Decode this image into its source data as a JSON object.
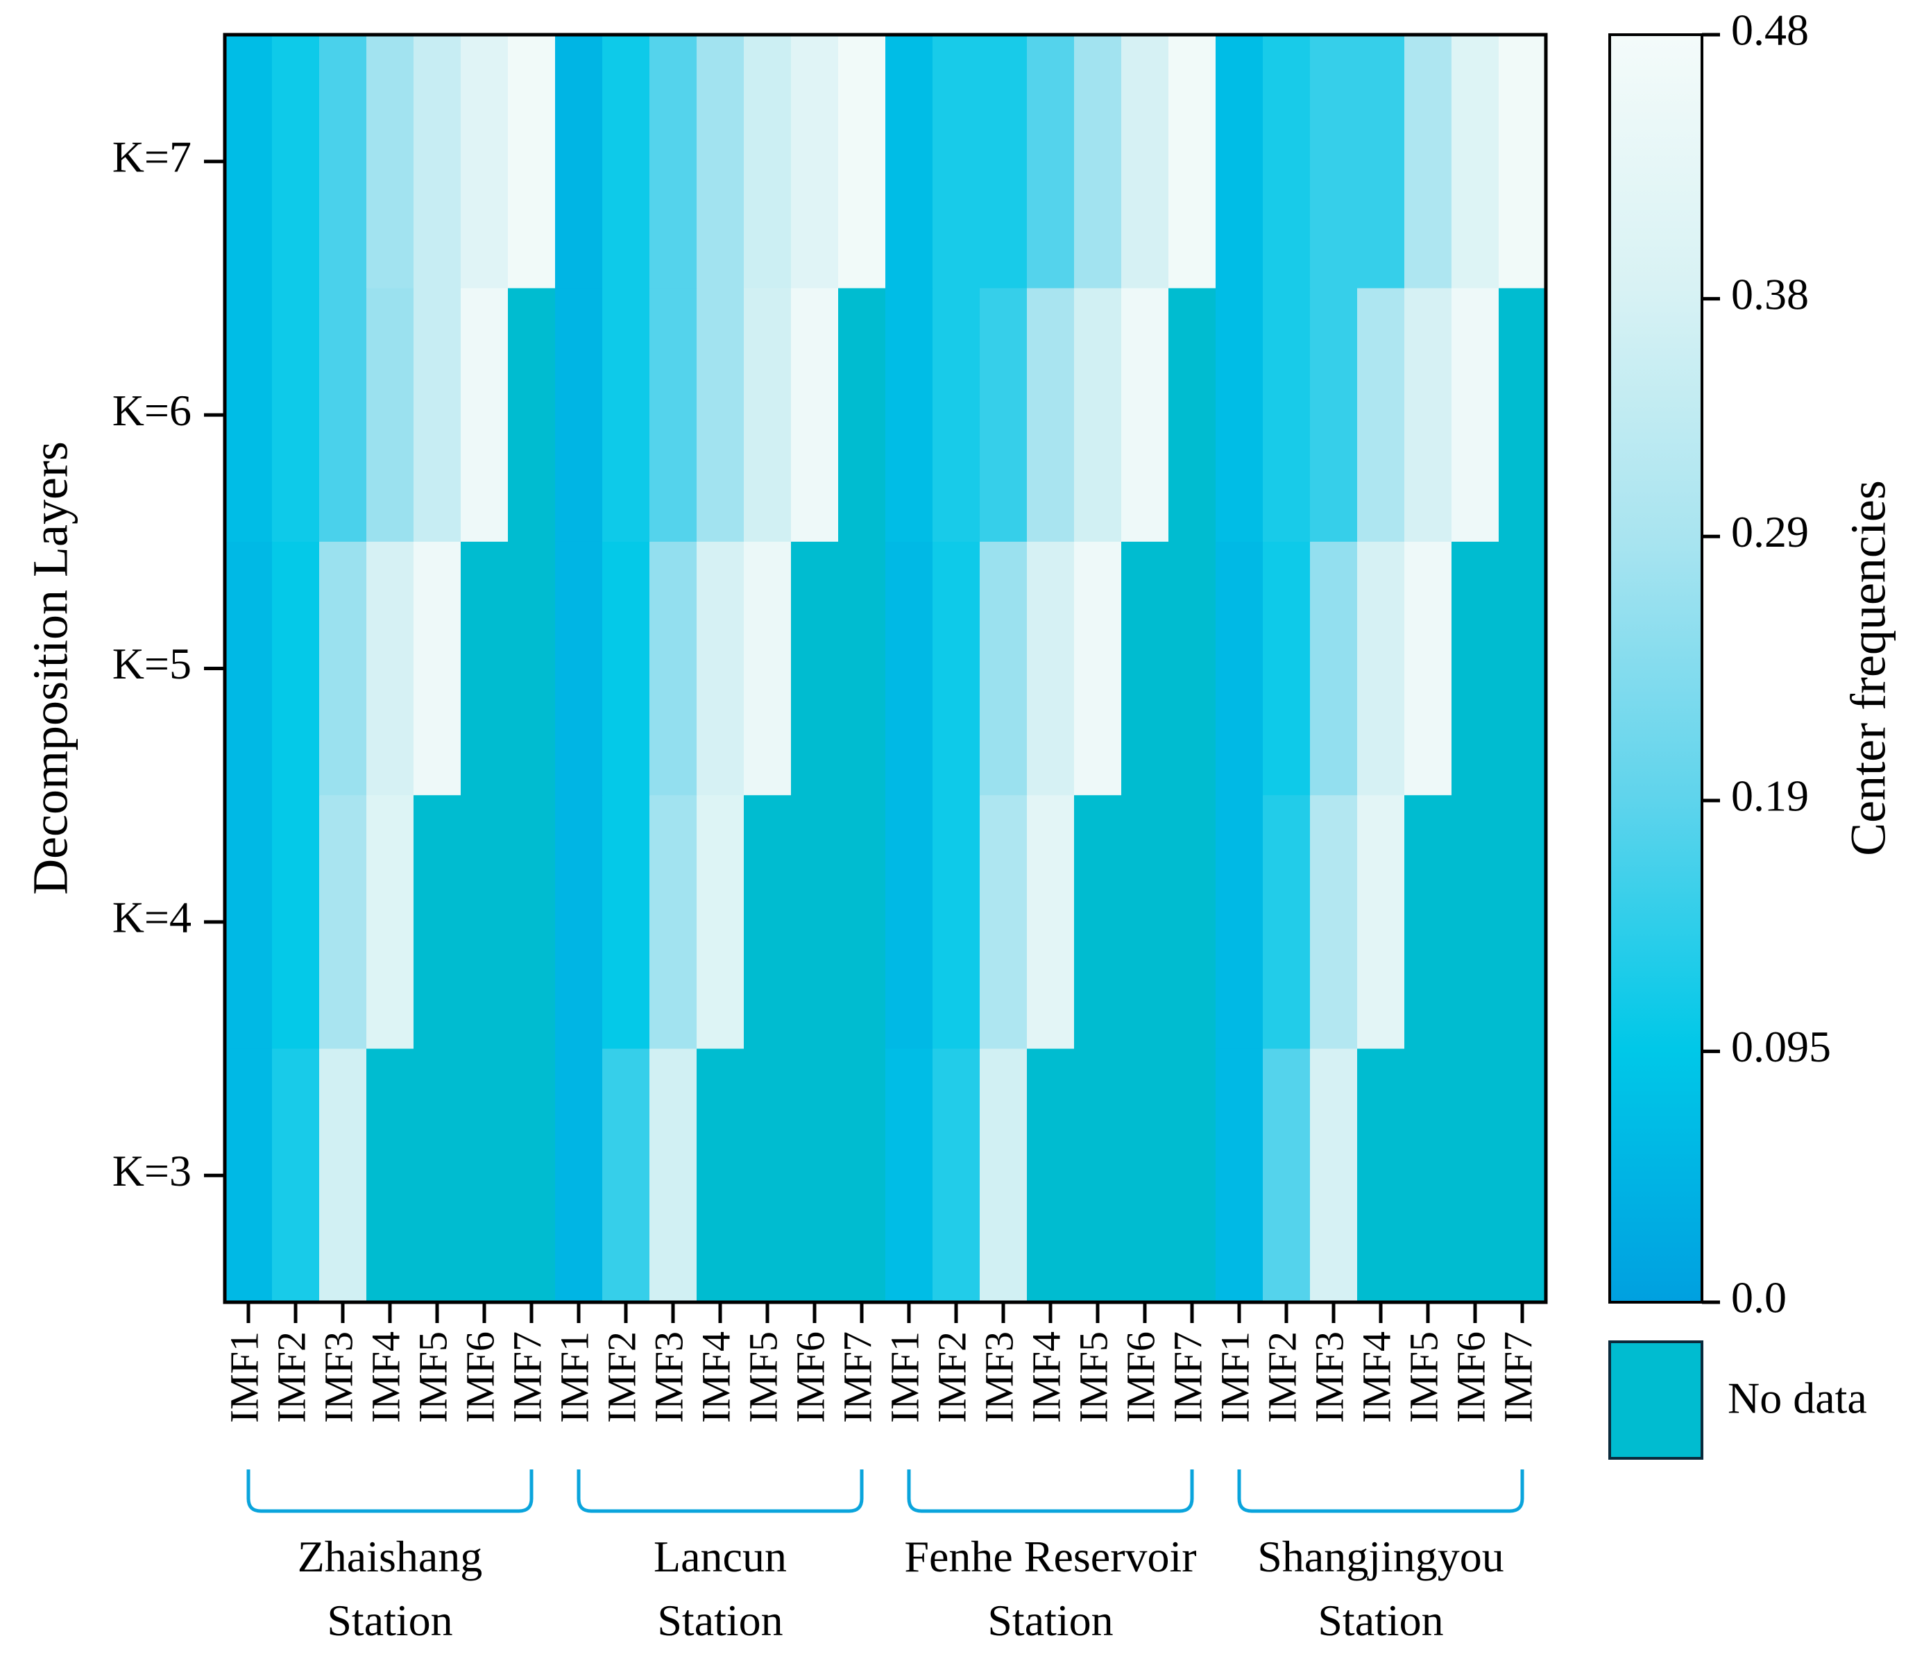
{
  "chart_data": {
    "type": "heatmap",
    "ylabel": "Decomposition Layers",
    "y_categories": [
      "K=3",
      "K=4",
      "K=5",
      "K=6",
      "K=7"
    ],
    "x_categories": [
      "IMF1",
      "IMF2",
      "IMF3",
      "IMF4",
      "IMF5",
      "IMF6",
      "IMF7"
    ],
    "groups": [
      {
        "name_lines": [
          "Zhaishang",
          "Station"
        ],
        "rows": {
          "K=7": [
            0.07,
            0.11,
            0.17,
            0.28,
            0.35,
            0.41,
            0.47
          ],
          "K=6": [
            0.07,
            0.11,
            0.17,
            0.27,
            0.35,
            0.46,
            null
          ],
          "K=5": [
            0.06,
            0.1,
            0.27,
            0.38,
            0.46,
            null,
            null
          ],
          "K=4": [
            0.06,
            0.1,
            0.29,
            0.4,
            null,
            null,
            null
          ],
          "K=3": [
            0.06,
            0.12,
            0.37,
            null,
            null,
            null,
            null
          ]
        }
      },
      {
        "name_lines": [
          "Lancun",
          "Station"
        ],
        "rows": {
          "K=7": [
            0.05,
            0.11,
            0.18,
            0.28,
            0.36,
            0.41,
            0.47
          ],
          "K=6": [
            0.05,
            0.11,
            0.18,
            0.28,
            0.37,
            0.46,
            null
          ],
          "K=5": [
            0.05,
            0.1,
            0.26,
            0.38,
            0.45,
            null,
            null
          ],
          "K=4": [
            0.05,
            0.1,
            0.28,
            0.4,
            null,
            null,
            null
          ],
          "K=3": [
            0.05,
            0.15,
            0.37,
            null,
            null,
            null,
            null
          ]
        }
      },
      {
        "name_lines": [
          "Fenhe Reservoir",
          "Station"
        ],
        "rows": {
          "K=7": [
            0.07,
            0.12,
            0.12,
            0.18,
            0.28,
            0.38,
            0.47
          ],
          "K=6": [
            0.07,
            0.12,
            0.15,
            0.29,
            0.37,
            0.46,
            null
          ],
          "K=5": [
            0.06,
            0.11,
            0.27,
            0.38,
            0.46,
            null,
            null
          ],
          "K=4": [
            0.06,
            0.11,
            0.3,
            0.42,
            null,
            null,
            null
          ],
          "K=3": [
            0.07,
            0.13,
            0.37,
            null,
            null,
            null,
            null
          ]
        }
      },
      {
        "name_lines": [
          "Shangjingyou",
          "Station"
        ],
        "rows": {
          "K=7": [
            0.07,
            0.12,
            0.15,
            0.15,
            0.3,
            0.4,
            0.47
          ],
          "K=6": [
            0.07,
            0.12,
            0.15,
            0.3,
            0.38,
            0.46,
            null
          ],
          "K=5": [
            0.06,
            0.11,
            0.26,
            0.38,
            0.46,
            null,
            null
          ],
          "K=4": [
            0.06,
            0.13,
            0.31,
            0.42,
            null,
            null,
            null
          ],
          "K=3": [
            0.06,
            0.18,
            0.38,
            null,
            null,
            null,
            null
          ]
        }
      }
    ],
    "colorbar": {
      "label": "Center frequencies",
      "ticks": [
        "0.0",
        "0.095",
        "0.19",
        "0.29",
        "0.38",
        "0.48"
      ],
      "tick_values": [
        0,
        0.095,
        0.19,
        0.29,
        0.38,
        0.48
      ],
      "range": [
        0,
        0.48
      ],
      "colors": [
        "#00a0e0",
        "#00c8e8",
        "#60d4ec",
        "#a8e4f0",
        "#d8f2f4",
        "#f4fbfa"
      ]
    },
    "no_data": {
      "label": "No data",
      "color": "#00bcd0"
    },
    "bracket_color": "#0aa4dc"
  }
}
